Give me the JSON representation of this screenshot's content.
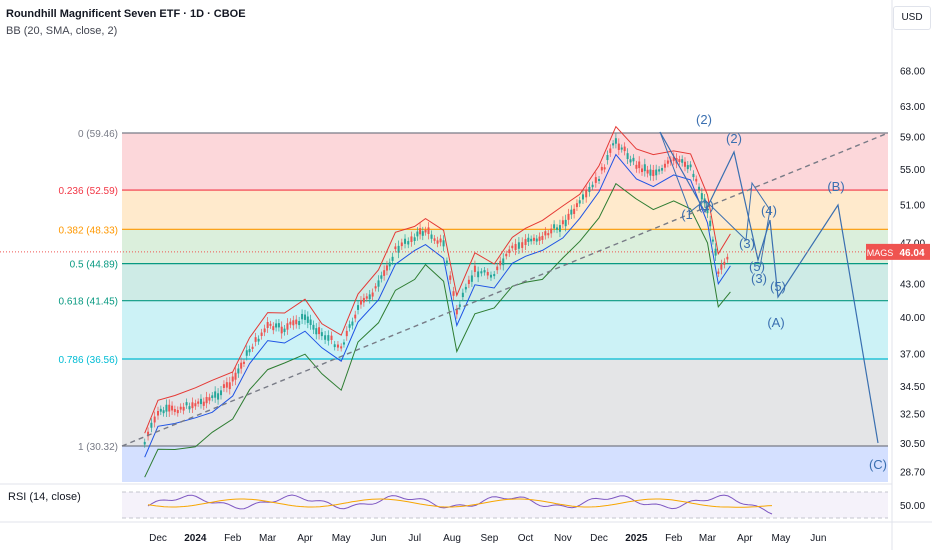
{
  "header": {
    "title": "Roundhill Magnificent Seven ETF · 1D · CBOE",
    "indicator": "BB (20, SMA, close, 2)",
    "currency": "USD"
  },
  "rsi": {
    "label": "RSI (14, close)",
    "tick": "50.00"
  },
  "price_tag": {
    "symbol": "MAGS",
    "value": "46.04"
  },
  "colors": {
    "up": "#26a69a",
    "down": "#ef5350",
    "bb_upper": "#e53935",
    "bb_mid": "#1e53e5",
    "bb_lower": "#2e7d32",
    "wave": "#3a6fb0"
  },
  "chart_data": {
    "type": "line",
    "title": "Roundhill Magnificent Seven ETF · 1D · CBOE",
    "x_ticks": [
      "Dec",
      "2024",
      "Feb",
      "Mar",
      "Apr",
      "May",
      "Jun",
      "Jul",
      "Aug",
      "Sep",
      "Oct",
      "Nov",
      "Dec",
      "2025",
      "Feb",
      "Mar",
      "Apr",
      "May",
      "Jun"
    ],
    "y_ticks": [
      "68.00",
      "63.00",
      "59.00",
      "55.00",
      "51.00",
      "47.00",
      "43.00",
      "40.00",
      "37.00",
      "34.50",
      "32.50",
      "30.50",
      "28.70"
    ],
    "y_scale": "log",
    "last_price": 46.04,
    "fib_levels": [
      {
        "label": "0 (59.46)",
        "price": 59.46,
        "color": "#787b86",
        "zone": "rgba(242,54,69,0.20)"
      },
      {
        "label": "0.236 (52.59)",
        "price": 52.59,
        "color": "#f23645",
        "zone": "rgba(255,152,0,0.20)"
      },
      {
        "label": "0.382 (48.33)",
        "price": 48.33,
        "color": "#ff9800",
        "zone": "rgba(76,175,80,0.20)"
      },
      {
        "label": "0.5 (44.89)",
        "price": 44.89,
        "color": "#089981",
        "zone": "rgba(8,153,129,0.20)"
      },
      {
        "label": "0.618 (41.45)",
        "price": 41.45,
        "color": "#089981",
        "zone": "rgba(0,188,212,0.20)"
      },
      {
        "label": "0.786 (36.56)",
        "price": 36.56,
        "color": "#00bcd4",
        "zone": "rgba(120,123,134,0.20)"
      },
      {
        "label": "1 (30.32)",
        "price": 30.32,
        "color": "#787b86",
        "zone": "rgba(41,98,255,0.20)"
      }
    ],
    "price_series": {
      "name": "",
      "x": [
        "2023-11-20",
        "2023-12-01",
        "2023-12-15",
        "2024-01-01",
        "2024-01-15",
        "2024-02-01",
        "2024-02-15",
        "2024-03-01",
        "2024-03-15",
        "2024-04-01",
        "2024-04-15",
        "2024-05-01",
        "2024-05-15",
        "2024-06-01",
        "2024-06-15",
        "2024-07-01",
        "2024-07-10",
        "2024-07-25",
        "2024-08-05",
        "2024-08-20",
        "2024-09-05",
        "2024-09-20",
        "2024-10-01",
        "2024-10-15",
        "2024-11-01",
        "2024-11-15",
        "2024-12-01",
        "2024-12-15",
        "2025-01-01",
        "2025-01-15",
        "2025-02-01",
        "2025-02-15",
        "2025-03-01",
        "2025-03-10",
        "2025-03-20"
      ],
      "values": [
        30.5,
        32.6,
        32.8,
        33.2,
        33.6,
        34.8,
        37.3,
        39.2,
        39.0,
        40.0,
        38.6,
        37.5,
        40.8,
        42.8,
        46.2,
        47.6,
        48.2,
        46.8,
        40.5,
        44.2,
        43.9,
        46.3,
        47.0,
        47.6,
        48.9,
        51.0,
        54.0,
        58.5,
        55.5,
        54.6,
        56.0,
        55.4,
        50.5,
        44.3,
        46.04
      ]
    },
    "annotations": [
      "(2)",
      "(2)",
      "(1",
      "(1)",
      "(3)",
      "(4)",
      "(5)",
      "(3)",
      "(5)",
      "(A)",
      "(B)",
      "(C)"
    ]
  }
}
